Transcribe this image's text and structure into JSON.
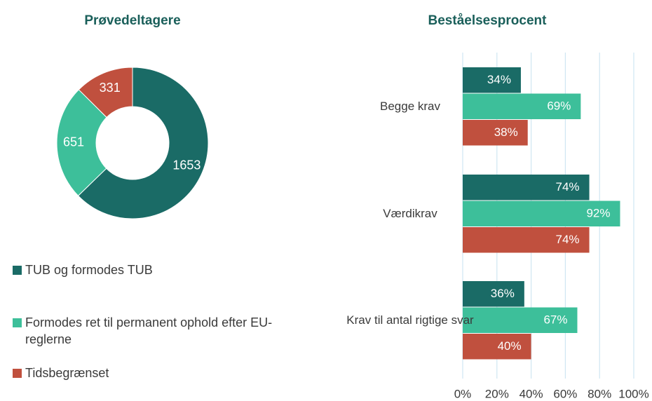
{
  "chart_data": [
    {
      "type": "donut",
      "title": "Prøvedeltagere",
      "categories": [
        "TUB og formodes TUB",
        "Formodes ret til permanent ophold efter EU-reglerne",
        "Tidsbegrænset"
      ],
      "values": [
        1653,
        651,
        331
      ],
      "colors": [
        "#1a6b66",
        "#3dbf9a",
        "#c0503e"
      ]
    },
    {
      "type": "hbar",
      "title": "Beståelsesprocent",
      "categories": [
        "Begge krav",
        "Værdikrav",
        "Krav til antal rigtige svar"
      ],
      "series": [
        {
          "color": "#1a6b66",
          "values": [
            34,
            74,
            36
          ],
          "value_labels": [
            "34%",
            "74%",
            "36%"
          ]
        },
        {
          "color": "#3dbf9a",
          "values": [
            69,
            92,
            67
          ],
          "value_labels": [
            "69%",
            "92%",
            "67%"
          ]
        },
        {
          "color": "#c0503e",
          "values": [
            38,
            74,
            40
          ],
          "value_labels": [
            "38%",
            "74%",
            "40%"
          ]
        }
      ],
      "xlim": [
        0,
        100
      ],
      "xticks": [
        {
          "value": 0,
          "label": "0%"
        },
        {
          "value": 20,
          "label": "20%"
        },
        {
          "value": 40,
          "label": "40%"
        },
        {
          "value": 60,
          "label": "60%"
        },
        {
          "value": 80,
          "label": "80%"
        },
        {
          "value": 100,
          "label": "100%"
        }
      ],
      "grid": true
    }
  ]
}
